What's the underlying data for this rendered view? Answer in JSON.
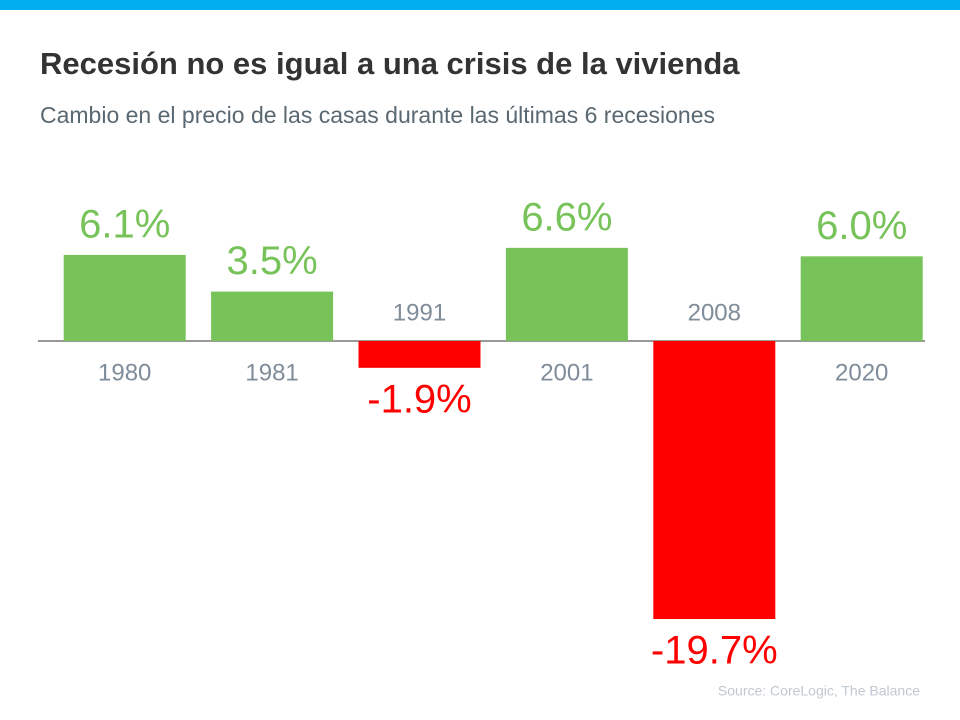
{
  "chart_data": {
    "type": "bar",
    "title": "Recesión no es igual a una crisis de la vivienda",
    "subtitle": "Cambio en el precio de las casas durante las últimas 6 recesiones",
    "categories": [
      "1980",
      "1981",
      "1991",
      "2001",
      "2008",
      "2020"
    ],
    "values": [
      6.1,
      3.5,
      -1.9,
      6.6,
      -19.7,
      6.0
    ],
    "value_labels": [
      "6.1%",
      "3.5%",
      "-1.9%",
      "6.6%",
      "-19.7%",
      "6.0%"
    ],
    "colors": [
      "#77c35a",
      "#77c35a",
      "#ff0000",
      "#77c35a",
      "#ff0000",
      "#77c35a"
    ],
    "source": "Source: CoreLogic, The Balance"
  }
}
